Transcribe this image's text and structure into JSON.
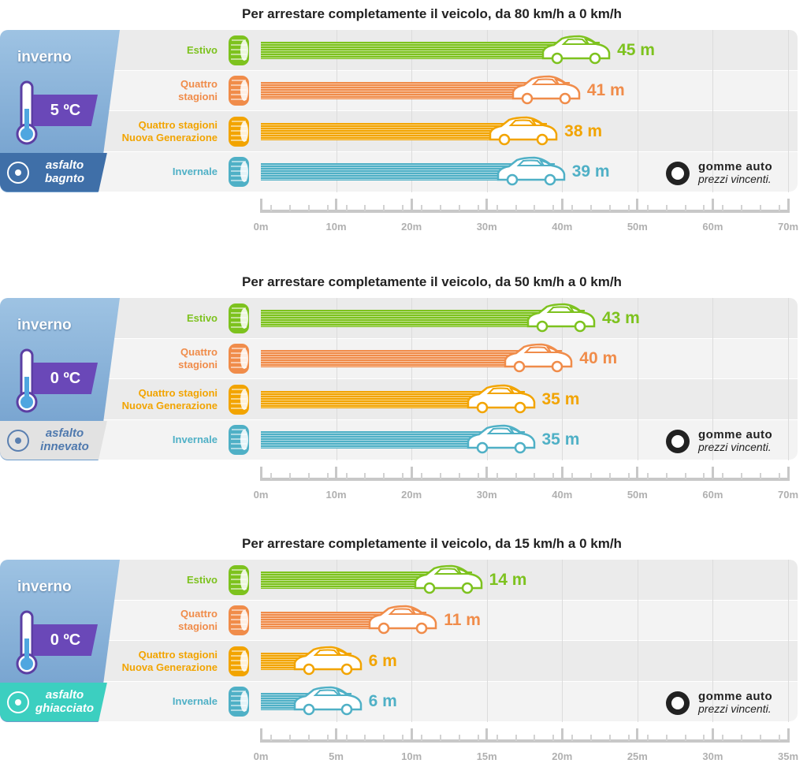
{
  "brand": {
    "name": "gomme auto",
    "slogan": "prezzi vincenti."
  },
  "chart_data": [
    {
      "type": "bar",
      "orientation": "horizontal",
      "title": "Per arrestare completamente il veicolo, da 80 km/h a 0 km/h",
      "season": "inverno",
      "temperature": "5 ºC",
      "surface": "asfalto\nbagnto",
      "surface_color": "#3f6fa8",
      "categories": [
        "Estivo",
        "Quattro\nstagioni",
        "Quattro stagioni\nNuova Generazione",
        "Invernale"
      ],
      "values": [
        45,
        41,
        38,
        39
      ],
      "value_labels": [
        "45 m",
        "41 m",
        "38 m",
        "39 m"
      ],
      "colors": [
        "#7dc21e",
        "#f08c4a",
        "#f2a400",
        "#4fb0c6"
      ],
      "xlim": [
        0,
        70
      ],
      "xticks": [
        {
          "value": 0,
          "label": "0m"
        },
        {
          "value": 10,
          "label": "10m"
        },
        {
          "value": 20,
          "label": "20m"
        },
        {
          "value": 30,
          "label": "30m"
        },
        {
          "value": 40,
          "label": "40m"
        },
        {
          "value": 50,
          "label": "50m"
        },
        {
          "value": 60,
          "label": "60m"
        },
        {
          "value": 70,
          "label": "70m"
        }
      ],
      "grid": true
    },
    {
      "type": "bar",
      "orientation": "horizontal",
      "title": "Per arrestare completamente il veicolo, da 50 km/h a 0 km/h",
      "season": "inverno",
      "temperature": "0 ºC",
      "surface": "asfalto\ninnevato",
      "surface_color": "#e2e2e2",
      "categories": [
        "Estivo",
        "Quattro\nstagioni",
        "Quattro stagioni\nNuova Generazione",
        "Invernale"
      ],
      "values": [
        43,
        40,
        35,
        35
      ],
      "value_labels": [
        "43 m",
        "40 m",
        "35 m",
        "35 m"
      ],
      "colors": [
        "#7dc21e",
        "#f08c4a",
        "#f2a400",
        "#4fb0c6"
      ],
      "xlim": [
        0,
        70
      ],
      "xticks": [
        {
          "value": 0,
          "label": "0m"
        },
        {
          "value": 10,
          "label": "10m"
        },
        {
          "value": 20,
          "label": "20m"
        },
        {
          "value": 30,
          "label": "30m"
        },
        {
          "value": 40,
          "label": "40m"
        },
        {
          "value": 50,
          "label": "50m"
        },
        {
          "value": 60,
          "label": "60m"
        },
        {
          "value": 70,
          "label": "70m"
        }
      ],
      "grid": true
    },
    {
      "type": "bar",
      "orientation": "horizontal",
      "title": "Per arrestare completamente il veicolo, da 15 km/h a 0 km/h",
      "season": "inverno",
      "temperature": "0 ºC",
      "surface": "asfalto\nghiacciato",
      "surface_color": "#3ccfc0",
      "categories": [
        "Estivo",
        "Quattro\nstagioni",
        "Quattro stagioni\nNuova Generazione",
        "Invernale"
      ],
      "values": [
        14,
        11,
        6,
        6
      ],
      "value_labels": [
        "14 m",
        "11 m",
        "6 m",
        "6 m"
      ],
      "colors": [
        "#7dc21e",
        "#f08c4a",
        "#f2a400",
        "#4fb0c6"
      ],
      "xlim": [
        0,
        35
      ],
      "xticks": [
        {
          "value": 0,
          "label": "0m"
        },
        {
          "value": 5,
          "label": "5m"
        },
        {
          "value": 10,
          "label": "10m"
        },
        {
          "value": 15,
          "label": "15m"
        },
        {
          "value": 20,
          "label": "20m"
        },
        {
          "value": 25,
          "label": "25m"
        },
        {
          "value": 30,
          "label": "30m"
        },
        {
          "value": 35,
          "label": "35m"
        }
      ],
      "grid": true
    }
  ]
}
